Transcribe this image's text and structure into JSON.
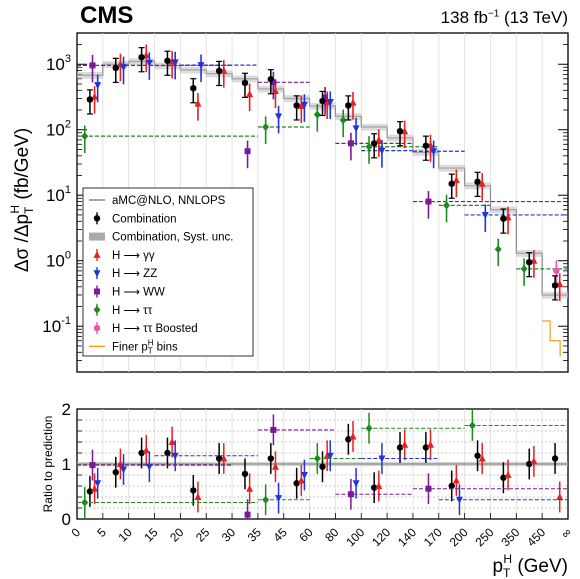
{
  "experiment": "CMS",
  "lumi_text": "138 fb",
  "lumi_sup": "−1",
  "energy_text": " (13 TeV)",
  "chart_data": [
    {
      "type": "line",
      "panel": "main",
      "ylabel": "Δσ /Δp_T^H (fb/GeV)",
      "yscale": "log",
      "ylim": [
        0.02,
        3000
      ],
      "yticks": [
        "10^{-1}",
        "10^{0}",
        "10^{1}",
        "10^{2}",
        "10^{3}"
      ],
      "bin_edges": [
        "0",
        "5",
        "10",
        "15",
        "20",
        "25",
        "30",
        "35",
        "45",
        "60",
        "80",
        "100",
        "120",
        "140",
        "170",
        "200",
        "250",
        "350",
        "450",
        "∞"
      ],
      "legend_position": "left-middle",
      "series": [
        {
          "name": "aMC@NLO, NNLOPS",
          "color": "#888888",
          "values": [
            680,
            1000,
            1100,
            950,
            820,
            720,
            600,
            420,
            300,
            230,
            160,
            110,
            75,
            45,
            26,
            14,
            6,
            1.3,
            0.3
          ]
        },
        {
          "name": "Combination",
          "color": "#000000",
          "values": [
            290,
            880,
            1280,
            1130,
            430,
            790,
            520,
            590,
            235,
            275,
            235,
            62,
            95,
            57,
            15,
            16,
            4.4,
            0.95,
            0.42
          ]
        },
        {
          "name": "H → γγ",
          "color": "#e8201f",
          "values": [
            320,
            1000,
            1380,
            1100,
            250,
            800,
            350,
            390,
            230,
            265,
            260,
            70,
            95,
            58,
            17,
            15,
            4.6,
            1.0,
            0.44
          ]
        },
        {
          "name": "H → ZZ",
          "color": "#2233dd",
          "values": [
            480,
            900,
            1050,
            1070,
            970,
            970,
            970,
            160,
            240,
            265,
            105,
            48,
            48,
            47,
            47,
            5,
            5,
            5,
            5
          ]
        },
        {
          "name": "H → WW",
          "color": "#7a1a96",
          "values": [
            960,
            960,
            960,
            960,
            960,
            960,
            47,
            530,
            530,
            310,
            62,
            62,
            62,
            8,
            8,
            8,
            8,
            8,
            8
          ]
        },
        {
          "name": "H → ττ",
          "color": "#1f8a1f",
          "values": [
            80,
            80,
            80,
            80,
            80,
            80,
            80,
            110,
            110,
            170,
            140,
            55,
            55,
            55,
            7,
            7,
            1.5,
            0.75,
            0.75
          ]
        },
        {
          "name": "H → ττ Boosted",
          "color": "#ee55aa",
          "values": [
            null,
            null,
            null,
            null,
            null,
            null,
            null,
            null,
            null,
            null,
            null,
            null,
            null,
            null,
            null,
            null,
            null,
            null,
            0.7
          ]
        }
      ]
    },
    {
      "type": "line",
      "panel": "ratio",
      "ylabel": "Ratio to prediction",
      "ylim": [
        0,
        2
      ],
      "yticks": [
        "0",
        "1",
        "2"
      ],
      "xlabel": "p_T^H (GeV)",
      "series": [
        {
          "name": "Combination",
          "values": [
            0.5,
            0.85,
            1.2,
            1.2,
            0.52,
            1.1,
            0.82,
            1.1,
            0.65,
            0.95,
            1.45,
            0.57,
            1.3,
            1.3,
            0.6,
            1.15,
            0.75,
            1.0,
            1.1
          ]
        },
        {
          "name": "H → γγ",
          "values": [
            0.55,
            1.0,
            1.25,
            1.4,
            0.4,
            1.1,
            0.55,
            0.95,
            0.7,
            1.15,
            1.5,
            0.6,
            1.35,
            1.35,
            0.7,
            1.1,
            0.8,
            1.05,
            0.4
          ]
        },
        {
          "name": "H → ZZ",
          "values": [
            0.65,
            0.9,
            0.95,
            1.15,
            1.15,
            1.15,
            1.15,
            0.38,
            0.8,
            1.15,
            0.65,
            1.1,
            1.1,
            1.1,
            0.35,
            0.35,
            0.35,
            0.35,
            0.35
          ]
        },
        {
          "name": "H → WW",
          "values": [
            0.98,
            0.98,
            0.98,
            0.98,
            0.98,
            0.98,
            0.08,
            1.62,
            1.62,
            1.62,
            0.45,
            0.45,
            0.45,
            0.55,
            0.55,
            0.55,
            0.55,
            0.55,
            0.55
          ]
        },
        {
          "name": "H → ττ",
          "values": [
            0.3,
            0.3,
            0.3,
            0.3,
            0.3,
            0.3,
            0.3,
            0.35,
            0.35,
            1.1,
            1.1,
            1.65,
            1.65,
            1.65,
            1.65,
            1.7,
            1.7,
            1.7,
            1.7
          ]
        }
      ]
    }
  ],
  "legend": {
    "items": [
      "aMC@NLO, NNLOPS",
      "Combination",
      "Combination, Syst. unc.",
      "H ⟶ γγ",
      "H ⟶ ZZ",
      "H ⟶ WW",
      "H ⟶ ττ",
      "H ⟶ ττ Boosted",
      "Finer p_T^H bins"
    ]
  }
}
